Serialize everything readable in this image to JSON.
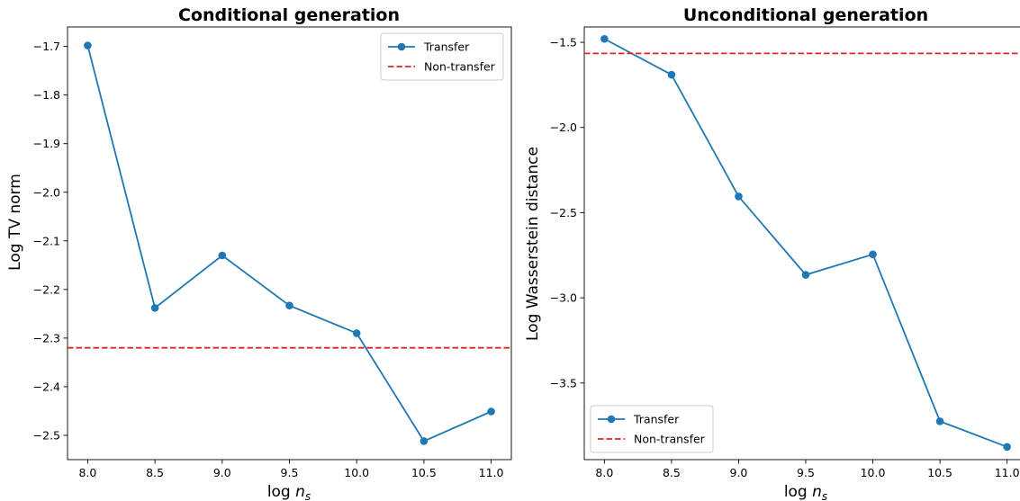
{
  "chart_data": [
    {
      "type": "line",
      "title": "Conditional generation",
      "xlabel": "log n_s",
      "ylabel": "Log TV norm",
      "x": [
        8.0,
        8.5,
        9.0,
        9.5,
        10.0,
        10.5,
        11.0
      ],
      "x_tick_labels": [
        "8.0",
        "8.5",
        "9.0",
        "9.5",
        "10.0",
        "10.5",
        "11.0"
      ],
      "y_ticks": [
        -1.7,
        -1.8,
        -1.9,
        -2.0,
        -2.1,
        -2.2,
        -2.3,
        -2.4,
        -2.5
      ],
      "y_tick_labels": [
        "−1.7",
        "−1.8",
        "−1.9",
        "−2.0",
        "−2.1",
        "−2.2",
        "−2.3",
        "−2.4",
        "−2.5"
      ],
      "xlim": [
        7.85,
        11.15
      ],
      "ylim": [
        -2.55,
        -1.66
      ],
      "series": [
        {
          "name": "Transfer",
          "color": "#1f77b4",
          "style": "solid",
          "marker": "circle",
          "values": [
            -1.698,
            -2.238,
            -2.13,
            -2.233,
            -2.29,
            -2.512,
            -2.451
          ]
        },
        {
          "name": "Non-transfer",
          "color": "#d62728",
          "style": "dashed",
          "marker": "none",
          "horizontal": -2.32
        }
      ],
      "legend": "top-right",
      "grid": false
    },
    {
      "type": "line",
      "title": "Unconditional generation",
      "xlabel": "log n_s",
      "ylabel": "Log Wasserstein distance",
      "x": [
        8.0,
        8.5,
        9.0,
        9.5,
        10.0,
        10.5,
        11.0
      ],
      "x_tick_labels": [
        "8.0",
        "8.5",
        "9.0",
        "9.5",
        "10.0",
        "10.5",
        "11.0"
      ],
      "y_ticks": [
        -1.5,
        -2.0,
        -2.5,
        -3.0,
        -3.5
      ],
      "y_tick_labels": [
        "−1.5",
        "−2.0",
        "−2.5",
        "−3.0",
        "−3.5"
      ],
      "xlim": [
        7.85,
        11.15
      ],
      "ylim": [
        -3.95,
        -1.41
      ],
      "series": [
        {
          "name": "Transfer",
          "color": "#1f77b4",
          "style": "solid",
          "marker": "circle",
          "values": [
            -1.48,
            -1.69,
            -2.405,
            -2.865,
            -2.745,
            -3.725,
            -3.875
          ]
        },
        {
          "name": "Non-transfer",
          "color": "#d62728",
          "style": "dashed",
          "marker": "none",
          "horizontal": -1.565
        }
      ],
      "legend": "bottom-left",
      "grid": false
    }
  ]
}
